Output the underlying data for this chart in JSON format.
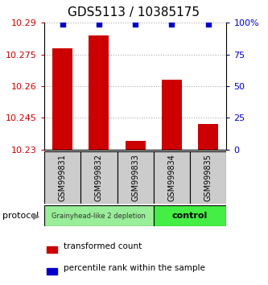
{
  "title": "GDS5113 / 10385175",
  "samples": [
    "GSM999831",
    "GSM999832",
    "GSM999833",
    "GSM999834",
    "GSM999835"
  ],
  "bar_values": [
    10.278,
    10.284,
    10.234,
    10.263,
    10.242
  ],
  "percentile_values": [
    99,
    99,
    99,
    99,
    99
  ],
  "ymin": 10.23,
  "ymax": 10.29,
  "yticks": [
    10.23,
    10.245,
    10.26,
    10.275,
    10.29
  ],
  "ytick_labels": [
    "10.23",
    "10.245",
    "10.26",
    "10.275",
    "10.29"
  ],
  "y2min": 0,
  "y2max": 100,
  "y2ticks": [
    0,
    25,
    50,
    75,
    100
  ],
  "y2tick_labels": [
    "0",
    "25",
    "50",
    "75",
    "100%"
  ],
  "bar_color": "#cc0000",
  "scatter_color": "#0000cc",
  "grid_color": "#aaaaaa",
  "group1_label": "Grainyhead-like 2 depletion",
  "group1_color": "#aaeea a",
  "group2_label": "control",
  "group2_color": "#44dd44",
  "group1_samples": [
    0,
    1,
    2
  ],
  "group2_samples": [
    3,
    4
  ],
  "protocol_label": "protocol",
  "legend_bar_label": "transformed count",
  "legend_scatter_label": "percentile rank within the sample",
  "title_fontsize": 11,
  "tick_fontsize": 8,
  "sample_fontsize": 7,
  "label_color_left": "#cc0000",
  "label_color_right": "#0000cc",
  "sample_bg_color": "#cccccc",
  "group1_bg": "#99ee99",
  "group2_bg": "#44ee44"
}
